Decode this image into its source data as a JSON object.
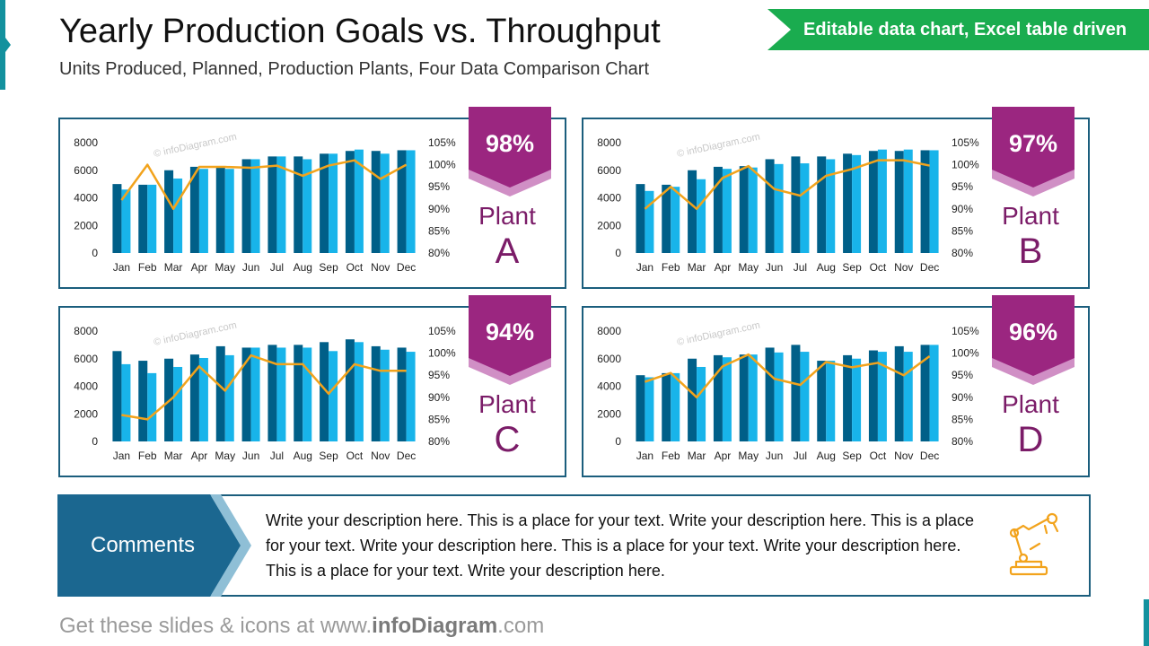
{
  "header": {
    "title": "Yearly Production Goals vs. Throughput",
    "subtitle": "Units Produced, Planned, Production Plants, Four Data Comparison Chart",
    "banner": "Editable data chart, Excel table driven"
  },
  "watermark": "© infoDiagram.com",
  "colors": {
    "produced": "#005f88",
    "planned": "#18b4ea",
    "throughput": "#f2a31c",
    "badge": "#9b2680",
    "badge_shadow": "#d08fc5",
    "border": "#1b5e7d"
  },
  "chart_data": [
    {
      "type": "bar",
      "name": "Plant A",
      "percent": "98%",
      "plant_word": "Plant",
      "plant_letter": "A",
      "categories": [
        "Jan",
        "Feb",
        "Mar",
        "Apr",
        "May",
        "Jun",
        "Jul",
        "Aug",
        "Sep",
        "Oct",
        "Nov",
        "Dec"
      ],
      "series": [
        {
          "values": [
            5000,
            4950,
            6000,
            6250,
            6250,
            6800,
            7000,
            7000,
            7200,
            7400,
            7400,
            7450
          ]
        },
        {
          "values": [
            4600,
            4950,
            5400,
            6100,
            6100,
            6800,
            7000,
            6800,
            7200,
            7500,
            7200,
            7450
          ]
        },
        {
          "values": [
            92,
            100,
            90,
            99.5,
            99.5,
            99.3,
            99.8,
            97.5,
            99.8,
            101,
            96.8,
            100
          ]
        }
      ],
      "y_left": {
        "min": 0,
        "max": 8000,
        "ticks": [
          "0",
          "2000",
          "4000",
          "6000",
          "8000"
        ]
      },
      "y_right": {
        "min": 80,
        "max": 105,
        "ticks": [
          "80%",
          "85%",
          "90%",
          "95%",
          "100%",
          "105%"
        ]
      }
    },
    {
      "type": "bar",
      "name": "Plant B",
      "percent": "97%",
      "plant_word": "Plant",
      "plant_letter": "B",
      "categories": [
        "Jan",
        "Feb",
        "Mar",
        "Apr",
        "May",
        "Jun",
        "Jul",
        "Aug",
        "Sep",
        "Oct",
        "Nov",
        "Dec"
      ],
      "series": [
        {
          "values": [
            5000,
            4950,
            6000,
            6250,
            6300,
            6800,
            7000,
            7000,
            7200,
            7400,
            7400,
            7450
          ]
        },
        {
          "values": [
            4500,
            4800,
            5350,
            6100,
            6200,
            6450,
            6500,
            6800,
            7100,
            7500,
            7500,
            7450
          ]
        },
        {
          "values": [
            90,
            95,
            90,
            97,
            99.7,
            94.5,
            93,
            97.5,
            99,
            101,
            101,
            99.8
          ]
        }
      ],
      "y_left": {
        "min": 0,
        "max": 8000,
        "ticks": [
          "0",
          "2000",
          "4000",
          "6000",
          "8000"
        ]
      },
      "y_right": {
        "min": 80,
        "max": 105,
        "ticks": [
          "80%",
          "85%",
          "90%",
          "95%",
          "100%",
          "105%"
        ]
      }
    },
    {
      "type": "bar",
      "name": "Plant C",
      "percent": "94%",
      "plant_word": "Plant",
      "plant_letter": "C",
      "categories": [
        "Jan",
        "Feb",
        "Mar",
        "Apr",
        "May",
        "Jun",
        "Jul",
        "Aug",
        "Sep",
        "Oct",
        "Nov",
        "Dec"
      ],
      "series": [
        {
          "values": [
            6550,
            5850,
            6000,
            6300,
            6900,
            6800,
            7000,
            7000,
            7200,
            7400,
            6900,
            6800
          ]
        },
        {
          "values": [
            5600,
            4950,
            5400,
            6050,
            6250,
            6800,
            6800,
            6800,
            6550,
            7200,
            6650,
            6500
          ]
        },
        {
          "values": [
            86,
            85,
            90,
            97,
            91.5,
            99.5,
            97.5,
            97.5,
            90.8,
            97.5,
            96,
            96
          ]
        }
      ],
      "y_left": {
        "min": 0,
        "max": 8000,
        "ticks": [
          "0",
          "2000",
          "4000",
          "6000",
          "8000"
        ]
      },
      "y_right": {
        "min": 80,
        "max": 105,
        "ticks": [
          "80%",
          "85%",
          "90%",
          "95%",
          "100%",
          "105%"
        ]
      }
    },
    {
      "type": "bar",
      "name": "Plant D",
      "percent": "96%",
      "plant_word": "Plant",
      "plant_letter": "D",
      "categories": [
        "Jan",
        "Feb",
        "Mar",
        "Apr",
        "May",
        "Jun",
        "Jul",
        "Aug",
        "Sep",
        "Oct",
        "Nov",
        "Dec"
      ],
      "series": [
        {
          "values": [
            4800,
            4950,
            6000,
            6250,
            6300,
            6800,
            7000,
            5850,
            6250,
            6600,
            6900,
            7000
          ]
        },
        {
          "values": [
            4650,
            4950,
            5400,
            6100,
            6300,
            6450,
            6500,
            5850,
            6000,
            6500,
            6500,
            7000
          ]
        },
        {
          "values": [
            93.5,
            95.5,
            90,
            97,
            99.7,
            94.2,
            92.8,
            98,
            96.8,
            97.8,
            95,
            99.3
          ]
        }
      ],
      "y_left": {
        "min": 0,
        "max": 8000,
        "ticks": [
          "0",
          "2000",
          "4000",
          "6000",
          "8000"
        ]
      },
      "y_right": {
        "min": 80,
        "max": 105,
        "ticks": [
          "80%",
          "85%",
          "90%",
          "95%",
          "100%",
          "105%"
        ]
      }
    }
  ],
  "comments": {
    "label": "Comments",
    "text": "Write your description here. This is a place for your text. Write your description here. This is a place for your text. Write your description here. This is a place for your text. Write your description here. This is a place for your text. Write your description here."
  },
  "footer": {
    "prefix": "Get these slides & icons at www.",
    "brand": "infoDiagram",
    "suffix": ".com"
  },
  "icons": {
    "comments_icon": "robot-arm-icon"
  }
}
